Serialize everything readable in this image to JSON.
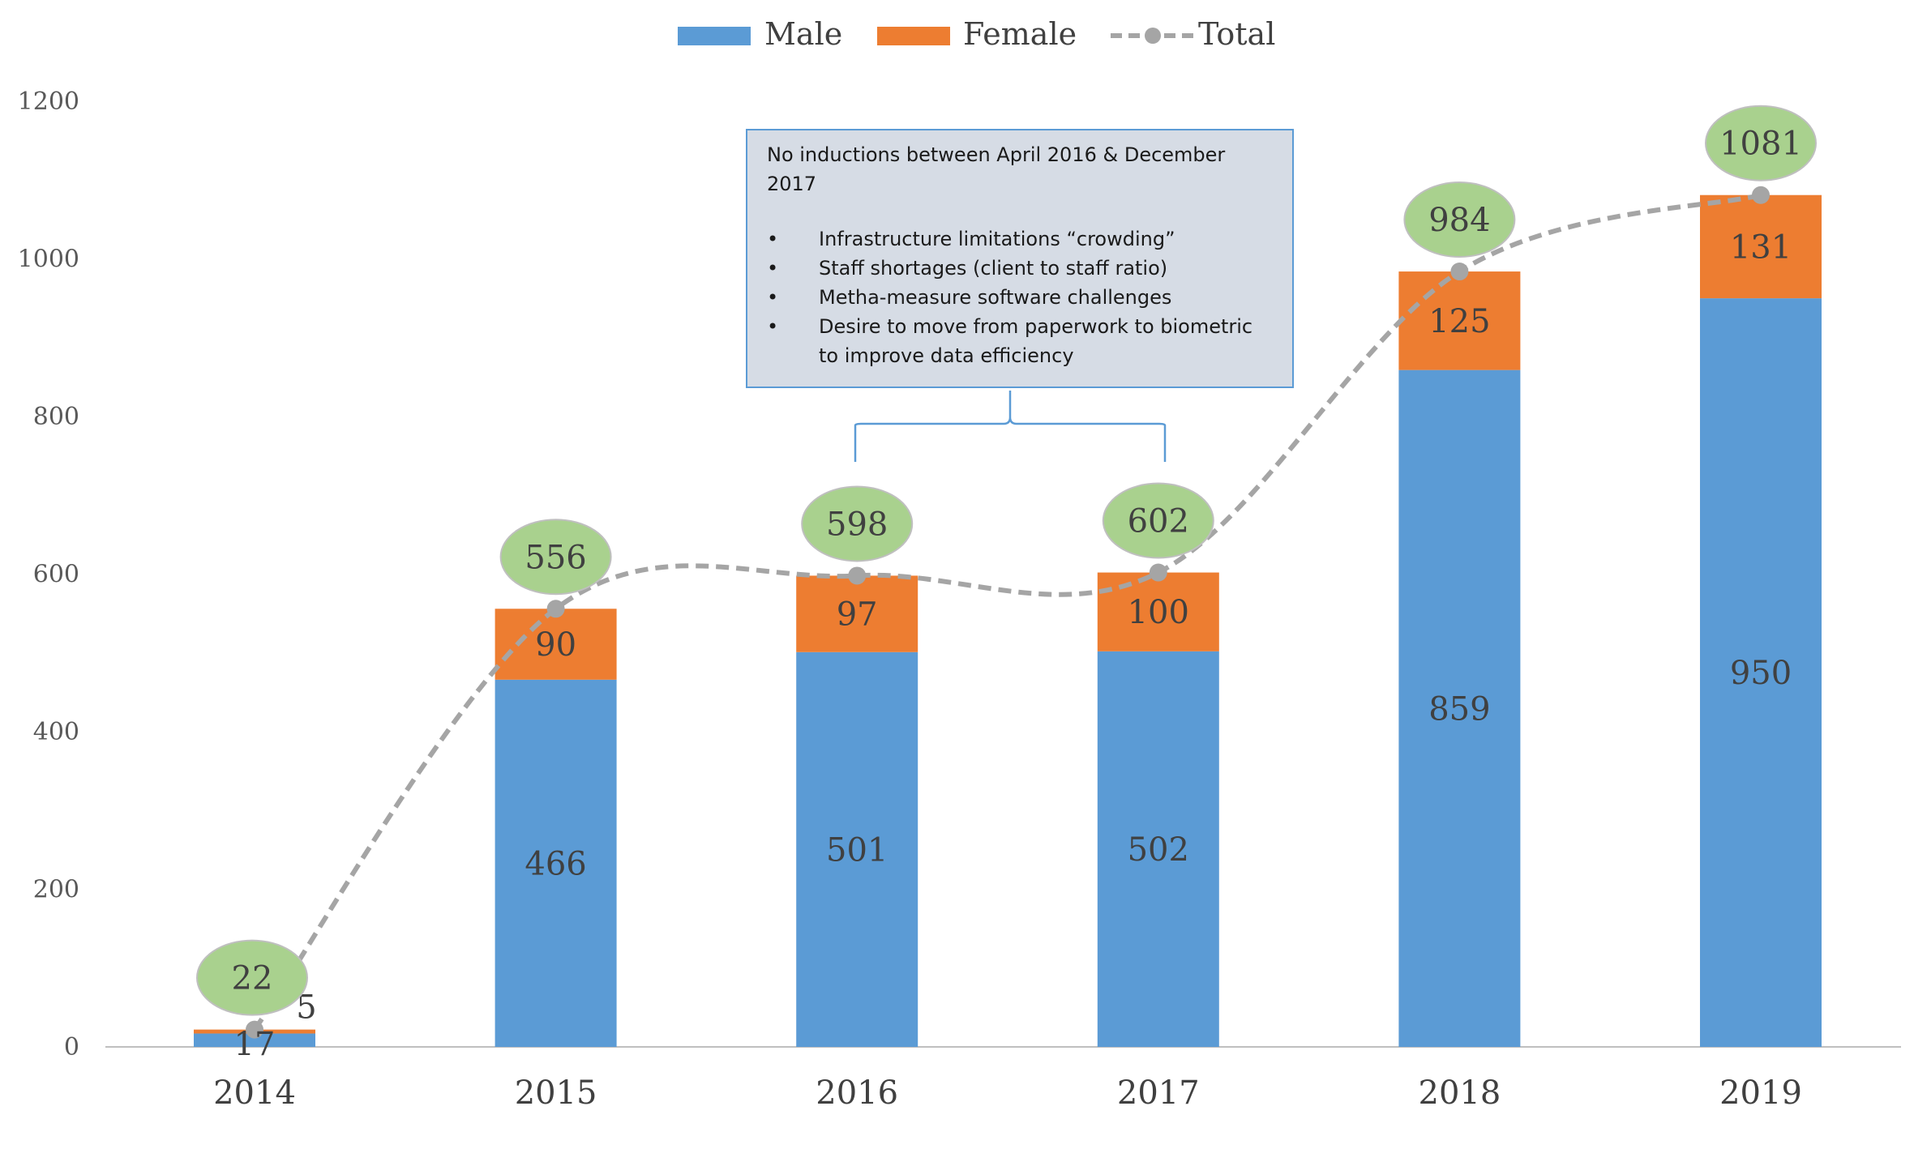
{
  "chart_data": {
    "type": "bar",
    "stacked": true,
    "categories": [
      "2014",
      "2015",
      "2016",
      "2017",
      "2018",
      "2019"
    ],
    "series": [
      {
        "name": "Male",
        "values": [
          17,
          466,
          501,
          502,
          859,
          950
        ],
        "color": "#5b9bd5"
      },
      {
        "name": "Female",
        "values": [
          5,
          90,
          97,
          100,
          125,
          131
        ],
        "color": "#ed7d31"
      }
    ],
    "total": {
      "name": "Total",
      "values": [
        22,
        556,
        598,
        602,
        984,
        1081
      ],
      "color": "#a5a5a5",
      "bubble_color": "#a9d18e"
    },
    "ylim": [
      0,
      1200
    ],
    "yticks": [
      0,
      200,
      400,
      600,
      800,
      1000,
      1200
    ],
    "legend_position": "top",
    "grid": false,
    "annotation": {
      "lines": [
        "No inductions between April 2016 & December",
        "2017"
      ],
      "bullets": [
        {
          "lines": [
            "Infrastructure limitations “crowding”"
          ]
        },
        {
          "lines": [
            "Staff shortages (client to staff ratio)"
          ]
        },
        {
          "lines": [
            "Metha-measure software challenges"
          ]
        },
        {
          "lines": [
            "Desire to move from paperwork to biometric",
            "to improve data efficiency"
          ]
        }
      ],
      "bullet_char": "•",
      "range": [
        "2016",
        "2017"
      ]
    }
  }
}
